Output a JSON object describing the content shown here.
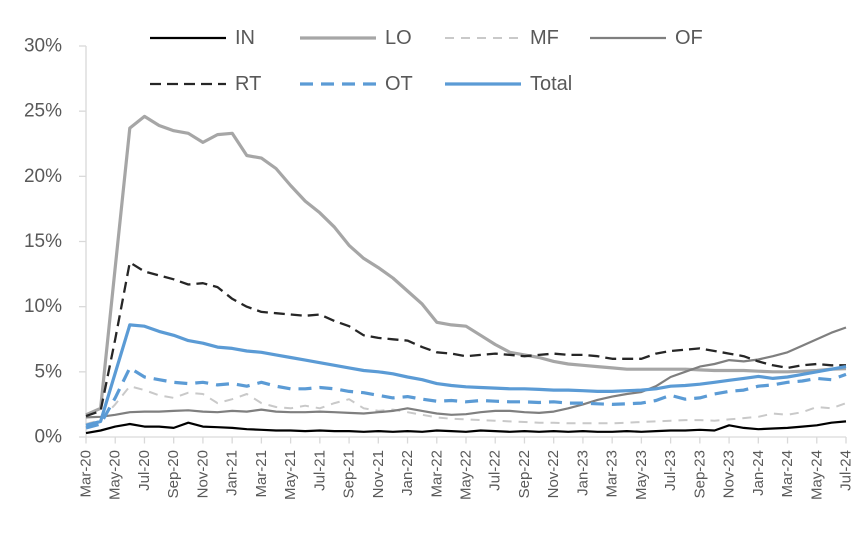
{
  "chart_data": {
    "type": "line",
    "title": "",
    "xlabel": "",
    "ylabel": "",
    "ylim": [
      0,
      30
    ],
    "grid": false,
    "axis_color": "#d9d9d9",
    "text_color": "#595959",
    "accent_blue": "#5b9bd5",
    "legend_position": "top",
    "yticklabels": [
      "0%",
      "5%",
      "10%",
      "15%",
      "20%",
      "25%",
      "30%"
    ],
    "yticks": [
      0,
      5,
      10,
      15,
      20,
      25,
      30
    ],
    "xticklabels": [
      "Mar-20",
      "May-20",
      "Jul-20",
      "Sep-20",
      "Nov-20",
      "Jan-21",
      "Mar-21",
      "May-21",
      "Jul-21",
      "Sep-21",
      "Nov-21",
      "Jan-22",
      "Mar-22",
      "May-22",
      "Jul-22",
      "Sep-22",
      "Nov-22",
      "Jan-23",
      "Mar-23",
      "May-23",
      "Jul-23",
      "Sep-23",
      "Nov-23",
      "Jan-24",
      "Mar-24",
      "May-24",
      "Jul-24"
    ],
    "x": [
      "Mar-20",
      "Apr-20",
      "May-20",
      "Jun-20",
      "Jul-20",
      "Aug-20",
      "Sep-20",
      "Oct-20",
      "Nov-20",
      "Dec-20",
      "Jan-21",
      "Feb-21",
      "Mar-21",
      "Apr-21",
      "May-21",
      "Jun-21",
      "Jul-21",
      "Aug-21",
      "Sep-21",
      "Oct-21",
      "Nov-21",
      "Dec-21",
      "Jan-22",
      "Feb-22",
      "Mar-22",
      "Apr-22",
      "May-22",
      "Jun-22",
      "Jul-22",
      "Aug-22",
      "Sep-22",
      "Oct-22",
      "Nov-22",
      "Dec-22",
      "Jan-23",
      "Feb-23",
      "Mar-23",
      "Apr-23",
      "May-23",
      "Jun-23",
      "Jul-23",
      "Aug-23",
      "Sep-23",
      "Oct-23",
      "Nov-23",
      "Dec-23",
      "Jan-24",
      "Feb-24",
      "Mar-24",
      "Apr-24",
      "May-24",
      "Jun-24",
      "Jul-24"
    ],
    "series": [
      {
        "name": "IN",
        "color": "#000000",
        "style": "solid",
        "width": 2.2,
        "values": [
          0.3,
          0.5,
          0.8,
          1.0,
          0.8,
          0.8,
          0.7,
          1.1,
          0.8,
          0.75,
          0.7,
          0.6,
          0.55,
          0.5,
          0.5,
          0.45,
          0.5,
          0.45,
          0.45,
          0.4,
          0.45,
          0.4,
          0.45,
          0.4,
          0.5,
          0.45,
          0.4,
          0.5,
          0.45,
          0.4,
          0.45,
          0.4,
          0.45,
          0.4,
          0.45,
          0.4,
          0.4,
          0.45,
          0.4,
          0.45,
          0.5,
          0.5,
          0.55,
          0.5,
          0.9,
          0.7,
          0.6,
          0.65,
          0.7,
          0.8,
          0.9,
          1.1,
          1.2
        ]
      },
      {
        "name": "LO",
        "color": "#a6a6a6",
        "style": "solid",
        "width": 3.2,
        "values": [
          1.7,
          2.2,
          13.0,
          23.7,
          24.6,
          23.9,
          23.5,
          23.3,
          22.6,
          23.2,
          23.3,
          21.6,
          21.4,
          20.6,
          19.3,
          18.1,
          17.2,
          16.1,
          14.7,
          13.7,
          13.0,
          12.2,
          11.2,
          10.2,
          8.8,
          8.6,
          8.5,
          7.8,
          7.1,
          6.5,
          6.3,
          6.1,
          5.8,
          5.6,
          5.5,
          5.4,
          5.3,
          5.2,
          5.2,
          5.2,
          5.2,
          5.2,
          5.15,
          5.1,
          5.1,
          5.1,
          5.05,
          5.0,
          5.0,
          5.05,
          5.1,
          5.2,
          5.25
        ]
      },
      {
        "name": "MF",
        "color": "#c9c9c9",
        "style": "dashed",
        "dash": "9 7",
        "width": 2,
        "values": [
          1.0,
          1.3,
          2.5,
          3.9,
          3.6,
          3.2,
          3.0,
          3.4,
          3.3,
          2.6,
          2.9,
          3.3,
          2.6,
          2.3,
          2.2,
          2.4,
          2.2,
          2.6,
          2.9,
          2.2,
          2.0,
          2.1,
          1.9,
          1.7,
          1.5,
          1.4,
          1.35,
          1.3,
          1.25,
          1.2,
          1.15,
          1.1,
          1.1,
          1.05,
          1.05,
          1.05,
          1.05,
          1.1,
          1.15,
          1.2,
          1.25,
          1.3,
          1.3,
          1.25,
          1.35,
          1.45,
          1.55,
          1.8,
          1.7,
          1.9,
          2.3,
          2.2,
          2.6
        ]
      },
      {
        "name": "OF",
        "color": "#7f7f7f",
        "style": "solid",
        "width": 2.2,
        "values": [
          1.5,
          1.55,
          1.7,
          1.9,
          1.95,
          1.95,
          2.0,
          2.05,
          1.95,
          1.9,
          2.0,
          1.95,
          2.1,
          1.95,
          1.9,
          1.9,
          1.95,
          1.9,
          1.85,
          1.8,
          1.9,
          2.0,
          2.2,
          2.0,
          1.8,
          1.7,
          1.75,
          1.9,
          2.0,
          2.0,
          1.9,
          1.85,
          1.95,
          2.2,
          2.5,
          2.85,
          3.1,
          3.3,
          3.45,
          3.9,
          4.6,
          5.0,
          5.4,
          5.6,
          5.9,
          5.8,
          5.95,
          6.2,
          6.5,
          7.0,
          7.5,
          8.0,
          8.4
        ]
      },
      {
        "name": "RT",
        "color": "#262626",
        "style": "dashed",
        "dash": "11 6",
        "width": 2.3,
        "values": [
          1.6,
          2.0,
          7.5,
          13.4,
          12.7,
          12.4,
          12.1,
          11.7,
          11.8,
          11.5,
          10.6,
          10.0,
          9.6,
          9.5,
          9.4,
          9.3,
          9.4,
          8.9,
          8.5,
          7.8,
          7.6,
          7.5,
          7.4,
          6.9,
          6.5,
          6.4,
          6.2,
          6.3,
          6.4,
          6.3,
          6.2,
          6.3,
          6.4,
          6.3,
          6.3,
          6.2,
          6.0,
          6.0,
          6.0,
          6.4,
          6.6,
          6.7,
          6.8,
          6.6,
          6.4,
          6.2,
          5.8,
          5.5,
          5.3,
          5.5,
          5.6,
          5.5,
          5.5
        ]
      },
      {
        "name": "OT",
        "color": "#5b9bd5",
        "style": "dashed",
        "dash": "13 8",
        "width": 3.2,
        "values": [
          0.7,
          1.0,
          3.0,
          5.3,
          4.6,
          4.4,
          4.2,
          4.1,
          4.2,
          4.0,
          4.1,
          3.9,
          4.2,
          3.9,
          3.7,
          3.7,
          3.8,
          3.7,
          3.5,
          3.4,
          3.2,
          3.0,
          3.1,
          2.9,
          2.75,
          2.8,
          2.7,
          2.8,
          2.75,
          2.7,
          2.7,
          2.65,
          2.7,
          2.6,
          2.6,
          2.55,
          2.5,
          2.55,
          2.6,
          2.8,
          3.2,
          2.9,
          3.0,
          3.3,
          3.5,
          3.6,
          3.9,
          4.0,
          4.2,
          4.3,
          4.5,
          4.4,
          4.8
        ]
      },
      {
        "name": "Total",
        "color": "#5b9bd5",
        "style": "solid",
        "width": 3.2,
        "values": [
          0.9,
          1.2,
          4.9,
          8.6,
          8.5,
          8.1,
          7.8,
          7.4,
          7.2,
          6.9,
          6.8,
          6.6,
          6.5,
          6.3,
          6.1,
          5.9,
          5.7,
          5.5,
          5.3,
          5.1,
          5.0,
          4.85,
          4.6,
          4.4,
          4.1,
          3.95,
          3.85,
          3.8,
          3.75,
          3.7,
          3.7,
          3.65,
          3.6,
          3.6,
          3.55,
          3.5,
          3.5,
          3.55,
          3.6,
          3.7,
          3.9,
          3.95,
          4.05,
          4.2,
          4.35,
          4.5,
          4.65,
          4.5,
          4.6,
          4.8,
          5.0,
          5.2,
          5.4
        ]
      }
    ],
    "legend_rows": [
      [
        "IN",
        "LO",
        "MF",
        "OF"
      ],
      [
        "RT",
        "OT",
        "Total"
      ]
    ]
  }
}
